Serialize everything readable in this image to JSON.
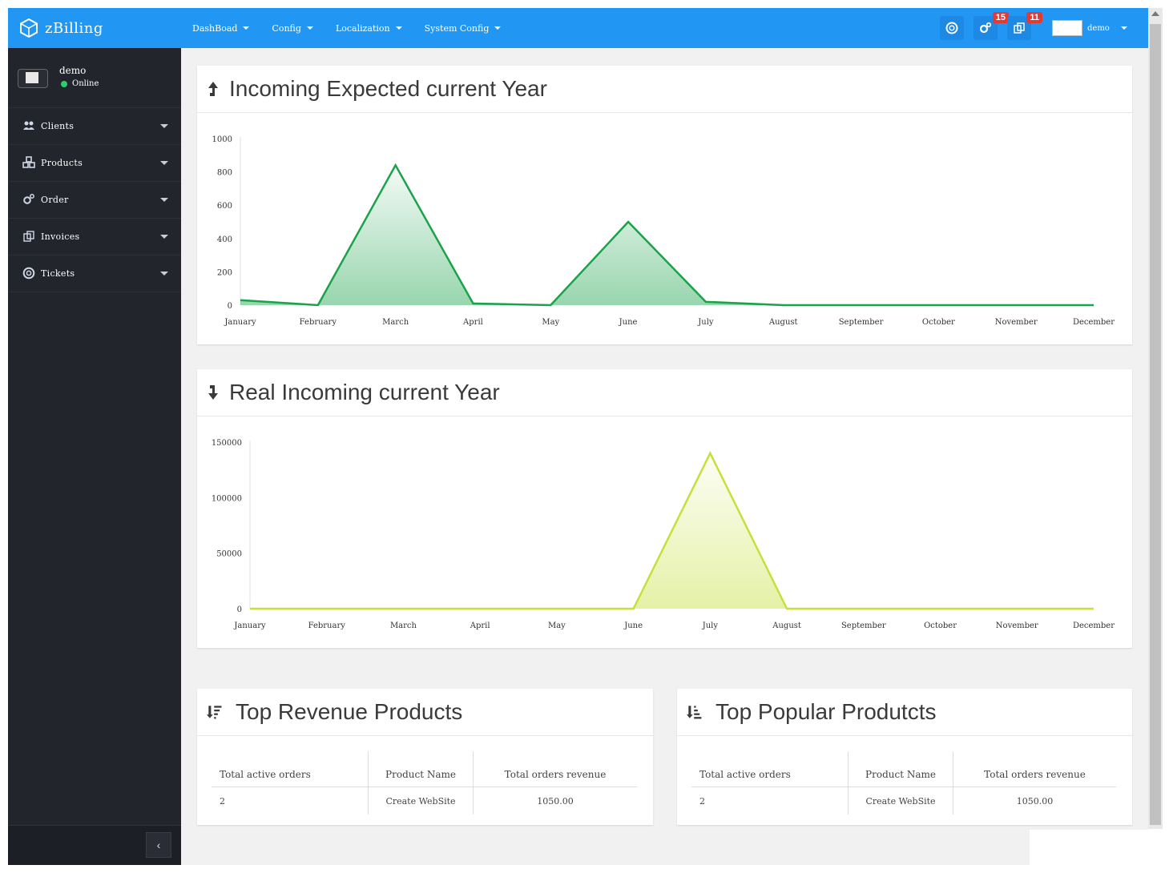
{
  "app": {
    "name": "zBilling"
  },
  "nav": [
    {
      "label": "DashBoad"
    },
    {
      "label": "Config"
    },
    {
      "label": "Localization"
    },
    {
      "label": "System Config"
    }
  ],
  "toolbar": {
    "badge_settings": "15",
    "badge_copy": "11",
    "user": "demo"
  },
  "sidebar": {
    "profile_name": "demo",
    "profile_status": "Online",
    "items": [
      {
        "label": "Clients",
        "icon": "users-icon"
      },
      {
        "label": "Products",
        "icon": "cubes-icon"
      },
      {
        "label": "Order",
        "icon": "gears-icon"
      },
      {
        "label": "Invoices",
        "icon": "copy-icon"
      },
      {
        "label": "Tickets",
        "icon": "life-ring-icon"
      }
    ],
    "collapse": "‹"
  },
  "panels": {
    "expected_title": "Incoming Expected current Year",
    "real_title": "Real Incoming current Year",
    "revenue_title": "Top Revenue Products",
    "popular_title": "Top Popular Produtcts"
  },
  "chart_data": [
    {
      "type": "area",
      "title": "Incoming Expected current Year",
      "categories": [
        "January",
        "February",
        "March",
        "April",
        "May",
        "June",
        "July",
        "August",
        "September",
        "October",
        "November",
        "December"
      ],
      "values": [
        30,
        0,
        840,
        10,
        0,
        500,
        20,
        0,
        0,
        0,
        0,
        0
      ],
      "yticks": [
        "0",
        "200",
        "400",
        "600",
        "800",
        "1000"
      ],
      "ylim": [
        0,
        1000
      ],
      "color": "#1aa34a"
    },
    {
      "type": "area",
      "title": "Real Incoming current Year",
      "categories": [
        "January",
        "February",
        "March",
        "April",
        "May",
        "June",
        "July",
        "August",
        "September",
        "October",
        "November",
        "December"
      ],
      "values": [
        0,
        0,
        0,
        0,
        0,
        0,
        140000,
        0,
        0,
        0,
        0,
        0
      ],
      "yticks": [
        "0",
        "50000",
        "100000",
        "150000"
      ],
      "ylim": [
        0,
        150000
      ],
      "color": "#c6e03a"
    }
  ],
  "tables": {
    "revenue": {
      "headers": [
        "Total active orders",
        "Product Name",
        "Total orders revenue"
      ],
      "rows": [
        [
          "2",
          "Create WebSite",
          "1050.00"
        ]
      ]
    },
    "popular": {
      "headers": [
        "Total active orders",
        "Product Name",
        "Total orders revenue"
      ],
      "rows": [
        [
          "2",
          "Create WebSite",
          "1050.00"
        ]
      ]
    }
  }
}
